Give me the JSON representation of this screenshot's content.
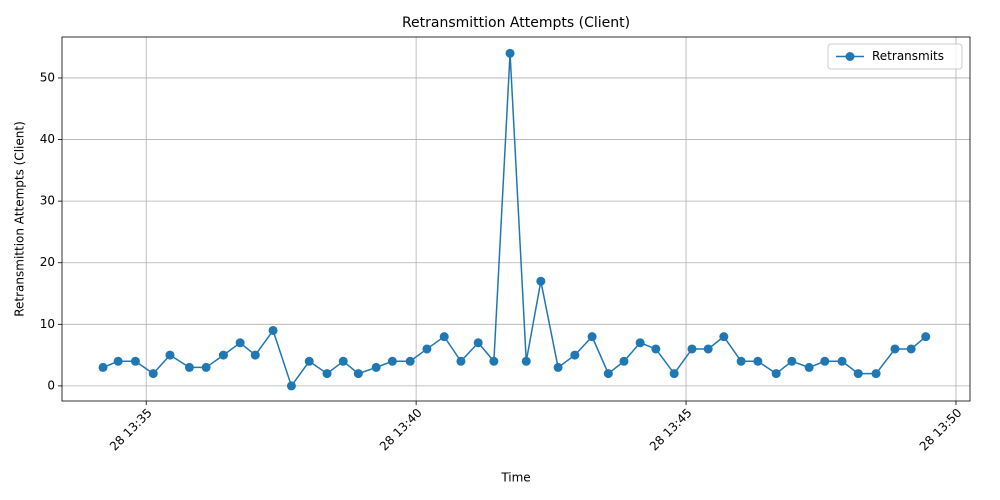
{
  "chart_data": {
    "type": "line",
    "title": "Retransmittion Attempts (Client)",
    "x_label": "Time",
    "y_label": "Retransmittion Attempts (Client)",
    "x": [
      814.2,
      814.48,
      814.8,
      815.13,
      815.44,
      815.8,
      816.11,
      816.43,
      816.74,
      817.02,
      817.35,
      817.69,
      818.02,
      818.35,
      818.65,
      818.93,
      819.26,
      819.56,
      819.89,
      820.2,
      820.52,
      820.83,
      821.15,
      821.44,
      821.74,
      822.04,
      822.31,
      822.63,
      822.94,
      823.26,
      823.56,
      823.85,
      824.15,
      824.44,
      824.78,
      825.11,
      825.41,
      825.7,
      826.02,
      826.33,
      826.67,
      826.96,
      827.28,
      827.57,
      827.89,
      828.19,
      828.52,
      828.87,
      829.17,
      829.44
    ],
    "series": [
      {
        "name": "Retransmits",
        "color": "#1f77b4",
        "values": [
          3,
          4,
          4,
          2,
          5,
          3,
          3,
          5,
          7,
          5,
          9,
          0,
          4,
          2,
          4,
          2,
          3,
          4,
          4,
          6,
          8,
          4,
          7,
          4,
          54,
          4,
          17,
          3,
          5,
          8,
          2,
          4,
          7,
          6,
          2,
          6,
          6,
          8,
          4,
          4,
          2,
          4,
          3,
          4,
          4,
          2,
          2,
          6,
          6,
          8
        ]
      }
    ],
    "xlim": [
      813.44,
      830.26
    ],
    "xticks": [
      {
        "value": 815,
        "label": "28 13:35"
      },
      {
        "value": 820,
        "label": "28 13:40"
      },
      {
        "value": 825,
        "label": "28 13:45"
      },
      {
        "value": 830,
        "label": "28 13:50"
      }
    ],
    "ylim": [
      -2.45,
      56.65
    ],
    "yticks": [
      0,
      10,
      20,
      30,
      40,
      50
    ],
    "grid": true,
    "legend": "upper right"
  }
}
